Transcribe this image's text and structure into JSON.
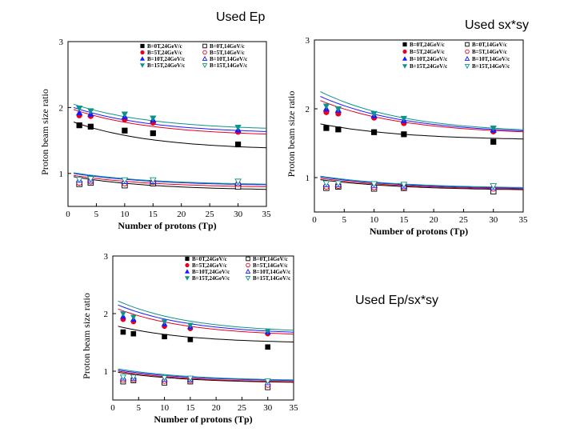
{
  "captions": [
    "Used Ep",
    "Used sx*sy",
    "Used Ep/sx*sy"
  ],
  "chart_data": [
    {
      "type": "scatter",
      "caption": "Used Ep",
      "xlabel": "Number of protons (Tp)",
      "ylabel": "Proton beam size ratio",
      "xlim": [
        0,
        35
      ],
      "ylim": [
        0.5,
        3
      ],
      "xticks": [
        0,
        5,
        10,
        15,
        20,
        25,
        30,
        35
      ],
      "yticks": [
        1,
        2,
        3
      ],
      "legend_position": "top-right",
      "series": [
        {
          "name": "B=0T,24GeV/c",
          "marker": "square-filled",
          "color": "#000000",
          "x": [
            2,
            4,
            10,
            15,
            30
          ],
          "y": [
            1.73,
            1.71,
            1.65,
            1.61,
            1.44
          ],
          "fit": [
            1.78,
            1.35
          ]
        },
        {
          "name": "B=5T,24GeV/c",
          "marker": "circle-filled",
          "color": "#e8001c",
          "x": [
            2,
            4,
            10,
            15,
            30
          ],
          "y": [
            1.88,
            1.87,
            1.82,
            1.77,
            1.63
          ],
          "fit": [
            1.97,
            1.56
          ]
        },
        {
          "name": "B=10T,24GeV/c",
          "marker": "triangle-filled",
          "color": "#1a1aff",
          "x": [
            2,
            4,
            10,
            15,
            30
          ],
          "y": [
            1.92,
            1.9,
            1.86,
            1.81,
            1.66
          ],
          "fit": [
            2.0,
            1.6
          ]
        },
        {
          "name": "B=15T,24GeV/c",
          "marker": "invtriangle-filled",
          "color": "#0d9488",
          "x": [
            2,
            4,
            10,
            15,
            30
          ],
          "y": [
            1.99,
            1.95,
            1.9,
            1.84,
            1.7
          ],
          "fit": [
            2.05,
            1.65
          ]
        },
        {
          "name": "B=0T,14GeV/c",
          "marker": "square-open",
          "color": "#000000",
          "x": [
            2,
            4,
            10,
            15,
            30
          ],
          "y": [
            0.84,
            0.86,
            0.82,
            0.85,
            0.8
          ],
          "fit": [
            0.95,
            0.74
          ]
        },
        {
          "name": "B=5T,14GeV/c",
          "marker": "circle-open",
          "color": "#e8001c",
          "x": [
            2,
            4,
            10,
            15,
            30
          ],
          "y": [
            0.86,
            0.88,
            0.85,
            0.87,
            0.84
          ],
          "fit": [
            0.97,
            0.78
          ]
        },
        {
          "name": "B=10T,14GeV/c",
          "marker": "triangle-open",
          "color": "#1a1aff",
          "x": [
            2,
            4,
            10,
            15,
            30
          ],
          "y": [
            0.9,
            0.9,
            0.88,
            0.88,
            0.86
          ],
          "fit": [
            1.0,
            0.81
          ]
        },
        {
          "name": "B=15T,14GeV/c",
          "marker": "invtriangle-open",
          "color": "#0d9488",
          "x": [
            2,
            4,
            10,
            15,
            30
          ],
          "y": [
            0.91,
            0.92,
            0.9,
            0.9,
            0.88
          ],
          "fit": [
            1.01,
            0.82
          ]
        }
      ]
    },
    {
      "type": "scatter",
      "caption": "Used sx*sy",
      "xlabel": "Number of protons (Tp)",
      "ylabel": "Proton beam size ratio",
      "xlim": [
        0,
        35
      ],
      "ylim": [
        0.5,
        3
      ],
      "xticks": [
        0,
        5,
        10,
        15,
        20,
        25,
        30,
        35
      ],
      "yticks": [
        1,
        2,
        3
      ],
      "legend_position": "top-right",
      "series": [
        {
          "name": "B=0T,24GeV/c",
          "marker": "square-filled",
          "color": "#000000",
          "x": [
            2,
            4,
            10,
            15,
            30
          ],
          "y": [
            1.72,
            1.7,
            1.66,
            1.63,
            1.52
          ],
          "fit": [
            1.78,
            1.54
          ]
        },
        {
          "name": "B=5T,24GeV/c",
          "marker": "circle-filled",
          "color": "#e8001c",
          "x": [
            2,
            4,
            10,
            15,
            30
          ],
          "y": [
            1.95,
            1.93,
            1.87,
            1.79,
            1.67
          ],
          "fit": [
            2.12,
            1.62
          ]
        },
        {
          "name": "B=10T,24GeV/c",
          "marker": "triangle-filled",
          "color": "#1a1aff",
          "x": [
            2,
            4,
            10,
            15,
            30
          ],
          "y": [
            2.0,
            1.98,
            1.9,
            1.83,
            1.69
          ],
          "fit": [
            2.18,
            1.63
          ]
        },
        {
          "name": "B=15T,24GeV/c",
          "marker": "invtriangle-filled",
          "color": "#0d9488",
          "x": [
            2,
            4,
            10,
            15,
            30
          ],
          "y": [
            2.04,
            2.0,
            1.93,
            1.86,
            1.72
          ],
          "fit": [
            2.25,
            1.64
          ]
        },
        {
          "name": "B=0T,14GeV/c",
          "marker": "square-open",
          "color": "#000000",
          "x": [
            2,
            4,
            10,
            15,
            30
          ],
          "y": [
            0.85,
            0.87,
            0.84,
            0.85,
            0.8
          ],
          "fit": [
            0.97,
            0.81
          ]
        },
        {
          "name": "B=5T,14GeV/c",
          "marker": "circle-open",
          "color": "#e8001c",
          "x": [
            2,
            4,
            10,
            15,
            30
          ],
          "y": [
            0.87,
            0.88,
            0.86,
            0.86,
            0.84
          ],
          "fit": [
            0.99,
            0.82
          ]
        },
        {
          "name": "B=10T,14GeV/c",
          "marker": "triangle-open",
          "color": "#1a1aff",
          "x": [
            2,
            4,
            10,
            15,
            30
          ],
          "y": [
            0.9,
            0.9,
            0.89,
            0.88,
            0.86
          ],
          "fit": [
            1.01,
            0.83
          ]
        },
        {
          "name": "B=15T,14GeV/c",
          "marker": "invtriangle-open",
          "color": "#0d9488",
          "x": [
            2,
            4,
            10,
            15,
            30
          ],
          "y": [
            0.92,
            0.92,
            0.91,
            0.9,
            0.88
          ],
          "fit": [
            1.02,
            0.84
          ]
        }
      ]
    },
    {
      "type": "scatter",
      "caption": "Used Ep/sx*sy",
      "xlabel": "Number of protons (Tp)",
      "ylabel": "Proton beam size ratio",
      "xlim": [
        0,
        35
      ],
      "ylim": [
        0.5,
        3
      ],
      "xticks": [
        0,
        5,
        10,
        15,
        20,
        25,
        30,
        35
      ],
      "yticks": [
        1,
        2,
        3
      ],
      "legend_position": "top-right",
      "series": [
        {
          "name": "B=0T,24GeV/c",
          "marker": "square-filled",
          "color": "#000000",
          "x": [
            2,
            4,
            10,
            15,
            30
          ],
          "y": [
            1.68,
            1.65,
            1.6,
            1.55,
            1.42
          ],
          "fit": [
            1.78,
            1.48
          ]
        },
        {
          "name": "B=5T,24GeV/c",
          "marker": "circle-filled",
          "color": "#e8001c",
          "x": [
            2,
            4,
            10,
            15,
            30
          ],
          "y": [
            1.9,
            1.86,
            1.78,
            1.74,
            1.65
          ],
          "fit": [
            2.08,
            1.6
          ]
        },
        {
          "name": "B=10T,24GeV/c",
          "marker": "triangle-filled",
          "color": "#1a1aff",
          "x": [
            2,
            4,
            10,
            15,
            30
          ],
          "y": [
            1.95,
            1.9,
            1.82,
            1.77,
            1.68
          ],
          "fit": [
            2.15,
            1.63
          ]
        },
        {
          "name": "B=15T,24GeV/c",
          "marker": "invtriangle-filled",
          "color": "#0d9488",
          "x": [
            2,
            4,
            10,
            15,
            30
          ],
          "y": [
            2.0,
            1.94,
            1.86,
            1.8,
            1.7
          ],
          "fit": [
            2.22,
            1.66
          ]
        },
        {
          "name": "B=0T,14GeV/c",
          "marker": "square-open",
          "color": "#000000",
          "x": [
            2,
            4,
            10,
            15,
            30
          ],
          "y": [
            0.82,
            0.84,
            0.8,
            0.82,
            0.72
          ],
          "fit": [
            0.98,
            0.79
          ]
        },
        {
          "name": "B=5T,14GeV/c",
          "marker": "circle-open",
          "color": "#e8001c",
          "x": [
            2,
            4,
            10,
            15,
            30
          ],
          "y": [
            0.85,
            0.86,
            0.83,
            0.84,
            0.76
          ],
          "fit": [
            1.0,
            0.8
          ]
        },
        {
          "name": "B=10T,14GeV/c",
          "marker": "triangle-open",
          "color": "#1a1aff",
          "x": [
            2,
            4,
            10,
            15,
            30
          ],
          "y": [
            0.88,
            0.88,
            0.86,
            0.86,
            0.8
          ],
          "fit": [
            1.02,
            0.82
          ]
        },
        {
          "name": "B=15T,14GeV/c",
          "marker": "invtriangle-open",
          "color": "#0d9488",
          "x": [
            2,
            4,
            10,
            15,
            30
          ],
          "y": [
            0.9,
            0.9,
            0.89,
            0.88,
            0.83
          ],
          "fit": [
            1.04,
            0.83
          ]
        }
      ]
    }
  ]
}
